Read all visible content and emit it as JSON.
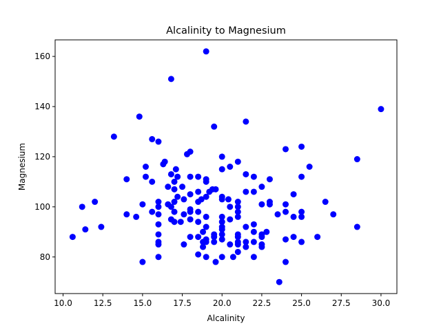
{
  "chart_data": {
    "type": "scatter",
    "title": "Alcalinity to Magnesium",
    "xlabel": "Alcalinity",
    "ylabel": "Magnesium",
    "xlim": [
      9.5,
      31.0
    ],
    "ylim": [
      65.4,
      166.6
    ],
    "xticks": [
      10.0,
      12.5,
      15.0,
      17.5,
      20.0,
      22.5,
      25.0,
      27.5,
      30.0
    ],
    "xtick_labels": [
      "10.0",
      "12.5",
      "15.0",
      "17.5",
      "20.0",
      "22.5",
      "25.0",
      "27.5",
      "30.0"
    ],
    "yticks": [
      80,
      100,
      120,
      140,
      160
    ],
    "ytick_labels": [
      "80",
      "100",
      "120",
      "140",
      "160"
    ],
    "grid": false,
    "marker_color": "#0000ff",
    "series": [
      {
        "points": [
          [
            10.6,
            88
          ],
          [
            11.2,
            100
          ],
          [
            11.4,
            91
          ],
          [
            12.0,
            102
          ],
          [
            12.4,
            92
          ],
          [
            13.2,
            128
          ],
          [
            14.0,
            111
          ],
          [
            14.0,
            97
          ],
          [
            14.6,
            96
          ],
          [
            14.8,
            136
          ],
          [
            15.0,
            101
          ],
          [
            15.0,
            78
          ],
          [
            15.2,
            112
          ],
          [
            15.2,
            116
          ],
          [
            15.6,
            98
          ],
          [
            15.6,
            110
          ],
          [
            15.6,
            127
          ],
          [
            16.0,
            126
          ],
          [
            16.0,
            102
          ],
          [
            16.0,
            100
          ],
          [
            16.0,
            97
          ],
          [
            16.0,
            93
          ],
          [
            16.0,
            89
          ],
          [
            16.0,
            86
          ],
          [
            16.0,
            85
          ],
          [
            16.0,
            80
          ],
          [
            16.3,
            117
          ],
          [
            16.4,
            118
          ],
          [
            16.6,
            108
          ],
          [
            16.6,
            101
          ],
          [
            16.8,
            151
          ],
          [
            16.8,
            113
          ],
          [
            16.8,
            100
          ],
          [
            16.8,
            95
          ],
          [
            17.0,
            110
          ],
          [
            17.0,
            107
          ],
          [
            17.0,
            102
          ],
          [
            17.0,
            98
          ],
          [
            17.0,
            94
          ],
          [
            17.1,
            115
          ],
          [
            17.2,
            112
          ],
          [
            17.2,
            104
          ],
          [
            17.4,
            94
          ],
          [
            17.5,
            108
          ],
          [
            17.6,
            103
          ],
          [
            17.6,
            97
          ],
          [
            17.6,
            85
          ],
          [
            17.8,
            121
          ],
          [
            18.0,
            122
          ],
          [
            18.0,
            112
          ],
          [
            18.0,
            105
          ],
          [
            18.0,
            99
          ],
          [
            18.0,
            98
          ],
          [
            18.0,
            95
          ],
          [
            18.0,
            88
          ],
          [
            18.5,
            112
          ],
          [
            18.5,
            106
          ],
          [
            18.5,
            102
          ],
          [
            18.5,
            98
          ],
          [
            18.5,
            94
          ],
          [
            18.5,
            88
          ],
          [
            18.5,
            81
          ],
          [
            18.7,
            103
          ],
          [
            18.8,
            90
          ],
          [
            18.8,
            86
          ],
          [
            18.8,
            84
          ],
          [
            19.0,
            162
          ],
          [
            19.0,
            111
          ],
          [
            19.0,
            110
          ],
          [
            19.0,
            104
          ],
          [
            19.0,
            96
          ],
          [
            19.0,
            92
          ],
          [
            19.0,
            87
          ],
          [
            19.0,
            86
          ],
          [
            19.0,
            80
          ],
          [
            19.2,
            106
          ],
          [
            19.4,
            107
          ],
          [
            19.5,
            132
          ],
          [
            19.5,
            89
          ],
          [
            19.5,
            88
          ],
          [
            19.5,
            86
          ],
          [
            19.6,
            78
          ],
          [
            19.6,
            107
          ],
          [
            20.0,
            120
          ],
          [
            20.0,
            115
          ],
          [
            20.0,
            104
          ],
          [
            20.0,
            103
          ],
          [
            20.0,
            96
          ],
          [
            20.0,
            94
          ],
          [
            20.0,
            92
          ],
          [
            20.0,
            91
          ],
          [
            20.0,
            89
          ],
          [
            20.0,
            87
          ],
          [
            20.0,
            80
          ],
          [
            20.4,
            103
          ],
          [
            20.5,
            116
          ],
          [
            20.5,
            100
          ],
          [
            20.5,
            95
          ],
          [
            20.5,
            85
          ],
          [
            20.7,
            80
          ],
          [
            21.0,
            118
          ],
          [
            21.0,
            102
          ],
          [
            21.0,
            100
          ],
          [
            21.0,
            98
          ],
          [
            21.0,
            96
          ],
          [
            21.0,
            89
          ],
          [
            21.0,
            88
          ],
          [
            21.0,
            86
          ],
          [
            21.0,
            85
          ],
          [
            21.0,
            82
          ],
          [
            21.5,
            134
          ],
          [
            21.5,
            113
          ],
          [
            21.5,
            106
          ],
          [
            21.5,
            92
          ],
          [
            21.5,
            86
          ],
          [
            21.5,
            84
          ],
          [
            22.0,
            112
          ],
          [
            22.0,
            106
          ],
          [
            22.0,
            93
          ],
          [
            22.0,
            90
          ],
          [
            22.0,
            86
          ],
          [
            22.0,
            80
          ],
          [
            22.5,
            108
          ],
          [
            22.5,
            101
          ],
          [
            22.5,
            89
          ],
          [
            22.5,
            88
          ],
          [
            22.5,
            85
          ],
          [
            22.5,
            84
          ],
          [
            22.8,
            90
          ],
          [
            23.0,
            111
          ],
          [
            23.0,
            102
          ],
          [
            23.0,
            101
          ],
          [
            23.5,
            97
          ],
          [
            23.6,
            70
          ],
          [
            24.0,
            123
          ],
          [
            24.0,
            101
          ],
          [
            24.0,
            98
          ],
          [
            24.0,
            87
          ],
          [
            24.0,
            78
          ],
          [
            24.5,
            105
          ],
          [
            24.5,
            96
          ],
          [
            24.5,
            88
          ],
          [
            25.0,
            124
          ],
          [
            25.0,
            112
          ],
          [
            25.0,
            98
          ],
          [
            25.0,
            96
          ],
          [
            25.0,
            86
          ],
          [
            25.5,
            116
          ],
          [
            26.0,
            88
          ],
          [
            26.5,
            102
          ],
          [
            27.0,
            97
          ],
          [
            28.5,
            119
          ],
          [
            28.5,
            92
          ],
          [
            30.0,
            139
          ]
        ]
      }
    ]
  }
}
